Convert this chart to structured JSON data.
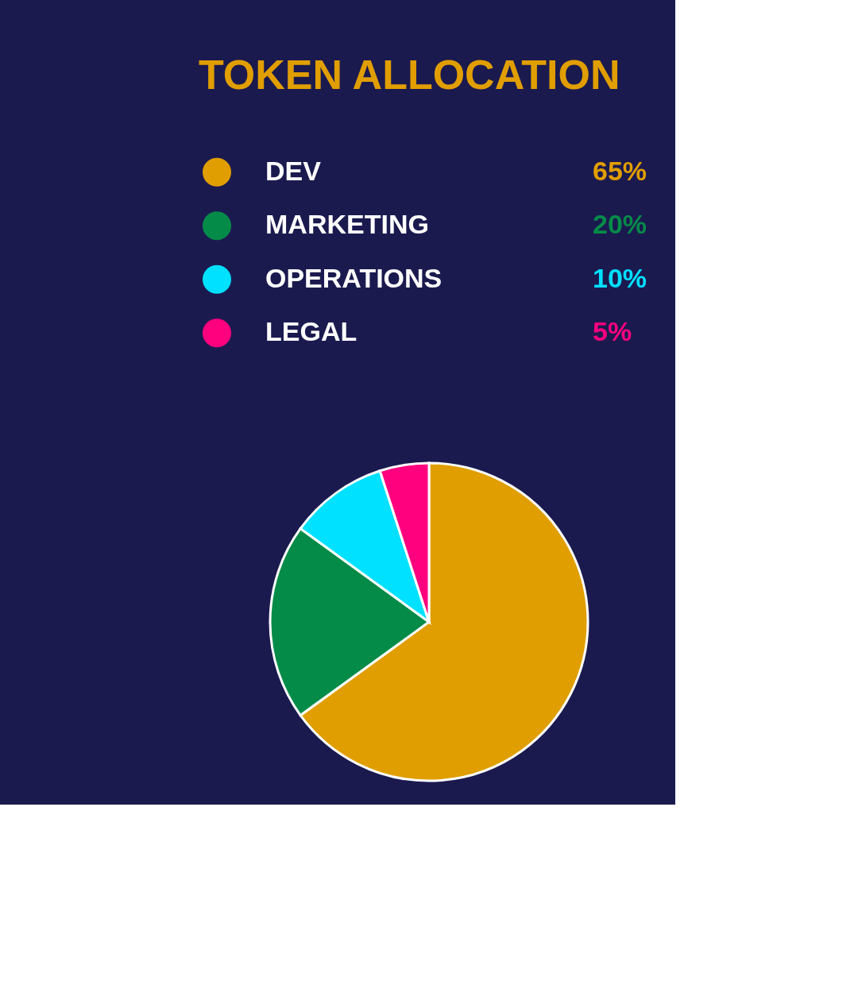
{
  "chart_data": {
    "type": "pie",
    "title": "TOKEN ALLOCATION",
    "categories": [
      "DEV",
      "MARKETING",
      "OPERATIONS",
      "LEGAL"
    ],
    "values": [
      65,
      20,
      10,
      5
    ],
    "value_labels": [
      "65%",
      "20%",
      "10%",
      "5%"
    ],
    "colors": [
      "#e09e00",
      "#058b48",
      "#00e0ff",
      "#ff007f"
    ],
    "legend": "top"
  }
}
